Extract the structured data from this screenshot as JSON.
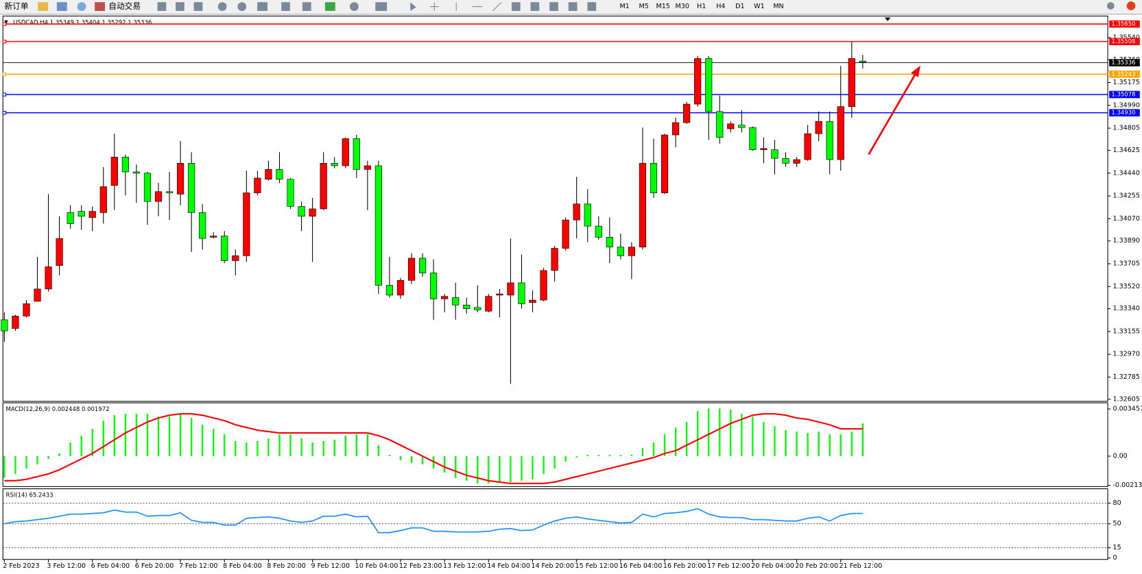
{
  "toolbar": {
    "buttons": [
      "新订单",
      "自动交易"
    ],
    "timeframes": [
      "M1",
      "M5",
      "M15",
      "M30",
      "H1",
      "H4",
      "D1",
      "W1",
      "MN"
    ]
  },
  "chart_data": [
    {
      "type": "candlestick",
      "title": "USDCAD,H4  1.35349 1.35404 1.35292 1.35336",
      "categories": [
        "2 Feb 2023",
        null,
        null,
        null,
        "3 Feb 12:00",
        null,
        null,
        null,
        "6 Feb 04:00",
        null,
        null,
        null,
        "6 Feb 20:00",
        null,
        null,
        null,
        "7 Feb 12:00",
        null,
        null,
        null,
        "8 Feb 04:00",
        null,
        null,
        null,
        "8 Feb 20:00",
        null,
        null,
        null,
        "9 Feb 12:00",
        null,
        null,
        null,
        "10 Feb 04:00",
        null,
        null,
        null,
        "12 Feb 23:00",
        null,
        null,
        null,
        "13 Feb 12:00",
        null,
        null,
        null,
        "14 Feb 04:00",
        null,
        null,
        null,
        "14 Feb 20:00",
        null,
        null,
        null,
        "15 Feb 12:00",
        null,
        null,
        null,
        "16 Feb 04:00",
        null,
        null,
        null,
        "16 Feb 20:00",
        null,
        null,
        null,
        "17 Feb 12:00",
        null,
        null,
        null,
        "20 Feb 04:00",
        null,
        null,
        null,
        "20 Feb 20:00",
        null,
        null,
        null,
        "21 Feb 12:00",
        null,
        null
      ],
      "open": [
        1.3325,
        1.3318,
        1.3328,
        1.334,
        1.335,
        1.3369,
        1.3412,
        1.3413,
        1.3408,
        1.3412,
        1.3434,
        1.3457,
        1.3445,
        1.3444,
        1.3421,
        1.3429,
        1.3427,
        1.3452,
        1.3412,
        1.3392,
        1.3393,
        1.3373,
        1.3377,
        1.3428,
        1.3439,
        1.3447,
        1.3439,
        1.3417,
        1.3409,
        1.3415,
        1.3452,
        1.345,
        1.3472,
        1.3447,
        1.345,
        1.3353,
        1.3345,
        1.3357,
        1.3375,
        1.3363,
        1.3342,
        1.3343,
        1.3337,
        1.3335,
        1.3332,
        1.3345,
        1.3345,
        1.3355,
        1.3339,
        1.3341,
        1.3365,
        1.3383,
        1.3406,
        1.3419,
        1.3401,
        1.3392,
        1.3384,
        1.3377,
        1.3384,
        1.3452,
        1.3428,
        1.3475,
        1.3485,
        1.35,
        1.3537,
        1.3494,
        1.348,
        1.3483,
        1.3481,
        1.3463,
        1.3463,
        1.3456,
        1.3452,
        1.3455,
        1.3476,
        1.3486,
        1.3455,
        1.3498,
        1.3535
      ],
      "high": [
        1.3331,
        1.3329,
        1.3341,
        1.3376,
        1.3427,
        1.3409,
        1.3418,
        1.3418,
        1.3417,
        1.3449,
        1.3476,
        1.3459,
        1.3451,
        1.3445,
        1.3436,
        1.3445,
        1.347,
        1.3461,
        1.3419,
        1.3396,
        1.3397,
        1.3382,
        1.3446,
        1.3446,
        1.3454,
        1.3461,
        1.344,
        1.3421,
        1.3424,
        1.3461,
        1.3457,
        1.3473,
        1.3475,
        1.3454,
        1.3454,
        1.3376,
        1.3359,
        1.3379,
        1.3379,
        1.3374,
        1.3346,
        1.3355,
        1.3343,
        1.3353,
        1.3346,
        1.335,
        1.3391,
        1.3378,
        1.3349,
        1.3367,
        1.3385,
        1.3408,
        1.3441,
        1.3431,
        1.3409,
        1.3408,
        1.3395,
        1.3388,
        1.3481,
        1.3472,
        1.3476,
        1.3489,
        1.3502,
        1.3539,
        1.3539,
        1.3507,
        1.3486,
        1.3495,
        1.3482,
        1.3473,
        1.3471,
        1.3461,
        1.3457,
        1.3483,
        1.3494,
        1.3494,
        1.3531,
        1.3551,
        1.354
      ],
      "low": [
        1.3307,
        1.3316,
        1.3327,
        1.334,
        1.3348,
        1.3361,
        1.3399,
        1.3398,
        1.3397,
        1.3403,
        1.3414,
        1.3426,
        1.342,
        1.3402,
        1.3409,
        1.3406,
        1.3418,
        1.338,
        1.3382,
        1.3391,
        1.3371,
        1.3361,
        1.3372,
        1.3426,
        1.3438,
        1.3436,
        1.3415,
        1.3397,
        1.3372,
        1.3414,
        1.3448,
        1.3448,
        1.344,
        1.3414,
        1.3346,
        1.3343,
        1.3342,
        1.3354,
        1.336,
        1.3325,
        1.3331,
        1.3325,
        1.333,
        1.3331,
        1.3331,
        1.3327,
        1.3273,
        1.3334,
        1.3331,
        1.334,
        1.3356,
        1.3381,
        1.3391,
        1.3388,
        1.339,
        1.3371,
        1.3374,
        1.3358,
        1.3382,
        1.3424,
        1.3427,
        1.3465,
        1.3484,
        1.3498,
        1.3471,
        1.3468,
        1.3477,
        1.3477,
        1.3462,
        1.3452,
        1.3443,
        1.3449,
        1.3449,
        1.3454,
        1.347,
        1.3443,
        1.3446,
        1.3489,
        1.3529
      ],
      "close": [
        1.3316,
        1.3328,
        1.3338,
        1.335,
        1.3368,
        1.3391,
        1.3403,
        1.3409,
        1.3413,
        1.3433,
        1.3457,
        1.3445,
        1.3444,
        1.3421,
        1.3429,
        1.3428,
        1.3452,
        1.3412,
        1.3391,
        1.3393,
        1.3373,
        1.3377,
        1.3428,
        1.344,
        1.3447,
        1.3439,
        1.3417,
        1.3409,
        1.3415,
        1.3452,
        1.345,
        1.3472,
        1.3447,
        1.345,
        1.3353,
        1.3345,
        1.3357,
        1.3375,
        1.3363,
        1.3342,
        1.3344,
        1.3337,
        1.3334,
        1.3333,
        1.3344,
        1.3346,
        1.3355,
        1.3338,
        1.3341,
        1.3365,
        1.3383,
        1.3406,
        1.3419,
        1.3401,
        1.3392,
        1.3384,
        1.3377,
        1.3384,
        1.3452,
        1.3428,
        1.3475,
        1.3485,
        1.35,
        1.3537,
        1.3494,
        1.3473,
        1.3484,
        1.3481,
        1.3463,
        1.3464,
        1.3456,
        1.3452,
        1.3455,
        1.3476,
        1.3486,
        1.3455,
        1.3498,
        1.3537,
        1.3534
      ],
      "up_color": "#ff0000",
      "down_color": "#00ff00",
      "ylim": [
        1.32588,
        1.35715
      ],
      "yticks": [
        {
          "value": 1.3554,
          "label": "1.35540"
        },
        {
          "value": 1.3536,
          "label": "1.35360"
        },
        {
          "value": 1.35175,
          "label": "1.35175"
        },
        {
          "value": 1.3499,
          "label": "1.34990"
        },
        {
          "value": 1.34805,
          "label": "1.34805"
        },
        {
          "value": 1.34625,
          "label": "1.34625"
        },
        {
          "value": 1.3444,
          "label": "1.34440"
        },
        {
          "value": 1.34255,
          "label": "1.34255"
        },
        {
          "value": 1.3407,
          "label": "1.34070"
        },
        {
          "value": 1.3389,
          "label": "1.33890"
        },
        {
          "value": 1.33705,
          "label": "1.33705"
        },
        {
          "value": 1.3352,
          "label": "1.33520"
        },
        {
          "value": 1.3334,
          "label": "1.33340"
        },
        {
          "value": 1.33155,
          "label": "1.33155"
        },
        {
          "value": 1.3297,
          "label": "1.32970"
        },
        {
          "value": 1.32785,
          "label": "1.32785"
        },
        {
          "value": 1.32605,
          "label": "1.32605"
        }
      ],
      "levels": [
        {
          "value": 1.3565,
          "label": "1.35650",
          "color": "#ff0000"
        },
        {
          "value": 1.35508,
          "label": "1.35508",
          "color": "#ff0000"
        },
        {
          "value": 1.35243,
          "label": "1.35243",
          "color": "#ffa500"
        },
        {
          "value": 1.35078,
          "label": "1.35078",
          "color": "#0000ff"
        },
        {
          "value": 1.3493,
          "label": "1.34930",
          "color": "#0000ff"
        }
      ],
      "current_price": {
        "value": 1.35336,
        "label": "1.35336",
        "color": "#000000"
      }
    },
    {
      "type": "macd",
      "title": "MACD(12,26,9) 0.002448 0.001972",
      "series": [
        {
          "color": "#00ff00",
          "values": [
            -0.0016,
            -0.0013,
            -0.0009,
            -0.0006,
            -0.0002,
            0.0002,
            0.001,
            0.0015,
            0.002,
            0.0026,
            0.003,
            0.0031,
            0.0031,
            0.0031,
            0.0029,
            0.0029,
            0.0031,
            0.0028,
            0.0023,
            0.002,
            0.0016,
            0.0011,
            0.001,
            0.0011,
            0.0013,
            0.0016,
            0.0016,
            0.0013,
            0.001,
            0.0011,
            0.0012,
            0.0015,
            0.0016,
            0.0016,
            0.0008,
            0.0001,
            -0.0003,
            -0.0005,
            -0.0006,
            -0.0009,
            -0.0012,
            -0.0016,
            -0.0018,
            -0.002,
            -0.002,
            -0.0019,
            -0.0019,
            -0.0018,
            -0.0017,
            -0.0013,
            -0.0009,
            -0.0004,
            -0.0001,
            0.0001,
            0.0001,
            0.0001,
            0.0001,
            0.0001,
            0.0006,
            0.001,
            0.0016,
            0.0021,
            0.0025,
            0.0033,
            0.0035,
            0.0035,
            0.0034,
            0.0031,
            0.0029,
            0.0025,
            0.0022,
            0.0019,
            0.0018,
            0.0017,
            0.0018,
            0.0016,
            0.0016,
            0.0018,
            0.0024
          ]
        },
        {
          "color": "#ff0000",
          "values": [
            -0.0018,
            -0.0018,
            -0.0017,
            -0.0015,
            -0.0013,
            -0.001,
            -0.0006,
            -0.0002,
            0.0002,
            0.0007,
            0.0012,
            0.0017,
            0.0021,
            0.0025,
            0.0028,
            0.003,
            0.0031,
            0.0031,
            0.003,
            0.0028,
            0.0026,
            0.0023,
            0.0021,
            0.0019,
            0.0018,
            0.0017,
            0.0017,
            0.0017,
            0.0017,
            0.0017,
            0.0017,
            0.0017,
            0.0017,
            0.0017,
            0.0015,
            0.0012,
            0.0008,
            0.0004,
            0.0,
            -0.0004,
            -0.0008,
            -0.0011,
            -0.0014,
            -0.0016,
            -0.0018,
            -0.0019,
            -0.002,
            -0.002,
            -0.002,
            -0.002,
            -0.0019,
            -0.0017,
            -0.0015,
            -0.0013,
            -0.0011,
            -0.0009,
            -0.0007,
            -0.0005,
            -0.0003,
            -0.0001,
            0.0002,
            0.0004,
            0.0008,
            0.0012,
            0.0016,
            0.002,
            0.0024,
            0.0027,
            0.003,
            0.0031,
            0.0031,
            0.003,
            0.0028,
            0.0027,
            0.0025,
            0.0023,
            0.002,
            0.002,
            0.002
          ]
        }
      ],
      "ylim": [
        -0.00223,
        0.0038
      ],
      "yticks": [
        0.003457,
        {
          "value": 0,
          "label": "0.00"
        },
        -0.002135
      ]
    },
    {
      "type": "line",
      "title": "RSI(14) 65.2433",
      "series": [
        {
          "color": "#1e90ff",
          "values": [
            50,
            53,
            54,
            56,
            58,
            61,
            64,
            64,
            65,
            66,
            70,
            67,
            67,
            61,
            62,
            62,
            66,
            55,
            52,
            52,
            48,
            48,
            58,
            59,
            60,
            58,
            54,
            52,
            54,
            61,
            61,
            64,
            60,
            61,
            37,
            37,
            40,
            44,
            44,
            39,
            39,
            38,
            38,
            38,
            39,
            42,
            43,
            40,
            41,
            48,
            54,
            58,
            60,
            57,
            55,
            53,
            51,
            52,
            64,
            60,
            65,
            66,
            68,
            72,
            64,
            60,
            59,
            59,
            56,
            56,
            55,
            54,
            54,
            58,
            60,
            54,
            62,
            65,
            65
          ]
        }
      ],
      "ylim": [
        0,
        100
      ],
      "yticks": [
        80,
        50,
        15,
        0
      ],
      "levels": [
        80,
        50,
        15
      ]
    }
  ]
}
